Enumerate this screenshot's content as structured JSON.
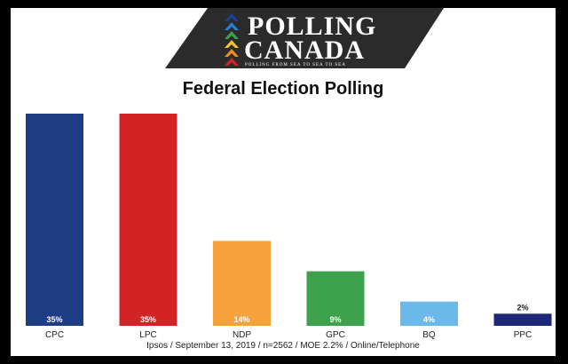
{
  "header": {
    "logo_line1": "POLLING",
    "logo_line2": "CANADA",
    "logo_tagline": "POLLING FROM SEA TO SEA TO SEA",
    "logo_colors": [
      "#1c3f91",
      "#2a7fd0",
      "#3aa24a",
      "#f4c430",
      "#f08a24",
      "#d62027"
    ]
  },
  "chart_data": {
    "type": "bar",
    "title": "Federal Election Polling",
    "categories": [
      "CPC",
      "LPC",
      "NDP",
      "GPC",
      "BQ",
      "PPC"
    ],
    "values": [
      35,
      35,
      14,
      9,
      4,
      2
    ],
    "value_labels": [
      "35%",
      "35%",
      "14%",
      "9%",
      "4%",
      "2%"
    ],
    "colors": [
      "#1e3d84",
      "#d32425",
      "#f6a23c",
      "#3ea14b",
      "#6bb9e8",
      "#1e2677"
    ],
    "ylim": [
      0,
      35
    ],
    "grid": false,
    "legend": false,
    "source": "Ipsos / September 13, 2019 / n=2562 / MOE 2.2% / Online/Telephone"
  }
}
